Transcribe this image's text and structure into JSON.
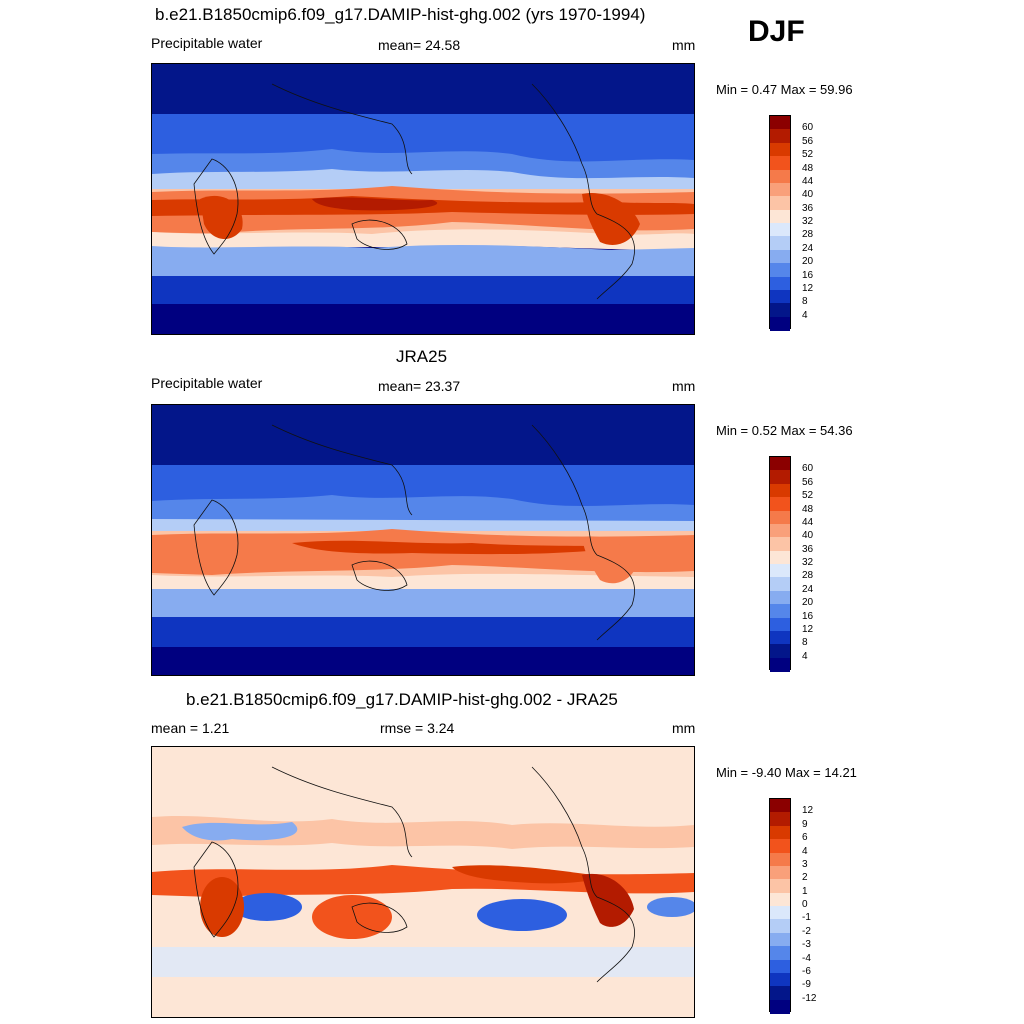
{
  "season": "DJF",
  "panels": [
    {
      "title": "b.e21.B1850cmip6.f09_g17.DAMIP-hist-ghg.002 (yrs 1970-1994)",
      "left_label": "Precipitable water",
      "center_label": "mean=  24.58",
      "right_label": "mm",
      "minmax": "Min =   0.47 Max =  59.96"
    },
    {
      "title": "JRA25",
      "left_label": "Precipitable water",
      "center_label": "mean=  23.37",
      "right_label": "mm",
      "minmax": "Min =   0.52 Max =  54.36"
    },
    {
      "title": "b.e21.B1850cmip6.f09_g17.DAMIP-hist-ghg.002 - JRA25",
      "left_label": "mean =   1.21",
      "center_label": "rmse =   3.24",
      "right_label": "mm",
      "minmax": "Min =  -9.40 Max =  14.21"
    }
  ],
  "colorbars": {
    "absolute": {
      "labels": [
        "60",
        "56",
        "52",
        "48",
        "44",
        "40",
        "36",
        "32",
        "28",
        "24",
        "20",
        "16",
        "12",
        "8",
        "4"
      ],
      "colors": [
        "#8b0000",
        "#b31b00",
        "#d93a00",
        "#f2531c",
        "#f57a4a",
        "#f9a07a",
        "#fcc4a6",
        "#fde6d6",
        "#dbe8fb",
        "#b4cdf6",
        "#87acf0",
        "#5586ea",
        "#2d5fe0",
        "#0f35c0",
        "#03168a",
        "#000080"
      ]
    },
    "difference": {
      "labels": [
        "12",
        "9",
        "6",
        "4",
        "3",
        "2",
        "1",
        "0",
        "-1",
        "-2",
        "-3",
        "-4",
        "-6",
        "-9",
        "-12"
      ],
      "colors": [
        "#8b0000",
        "#b31b00",
        "#d93a00",
        "#f2531c",
        "#f57a4a",
        "#f9a07a",
        "#fcc4a6",
        "#fde6d6",
        "#dbe8fb",
        "#b4cdf6",
        "#87acf0",
        "#5586ea",
        "#2d5fe0",
        "#0f35c0",
        "#03168a",
        "#000080"
      ]
    }
  },
  "chart_data": [
    {
      "type": "heatmap",
      "title": "b.e21.B1850cmip6.f09_g17.DAMIP-hist-ghg.002 (yrs 1970-1994)",
      "variable": "Precipitable water",
      "units": "mm",
      "mean": 24.58,
      "min": 0.47,
      "max": 59.96,
      "contour_levels": [
        4,
        8,
        12,
        16,
        20,
        24,
        28,
        32,
        36,
        40,
        44,
        48,
        52,
        56,
        60
      ]
    },
    {
      "type": "heatmap",
      "title": "JRA25",
      "variable": "Precipitable water",
      "units": "mm",
      "mean": 23.37,
      "min": 0.52,
      "max": 54.36,
      "contour_levels": [
        4,
        8,
        12,
        16,
        20,
        24,
        28,
        32,
        36,
        40,
        44,
        48,
        52,
        56,
        60
      ]
    },
    {
      "type": "heatmap",
      "title": "b.e21.B1850cmip6.f09_g17.DAMIP-hist-ghg.002 - JRA25",
      "units": "mm",
      "mean": 1.21,
      "rmse": 3.24,
      "min": -9.4,
      "max": 14.21,
      "contour_levels": [
        -12,
        -9,
        -6,
        -4,
        -3,
        -2,
        -1,
        0,
        1,
        2,
        3,
        4,
        6,
        9,
        12
      ]
    }
  ]
}
